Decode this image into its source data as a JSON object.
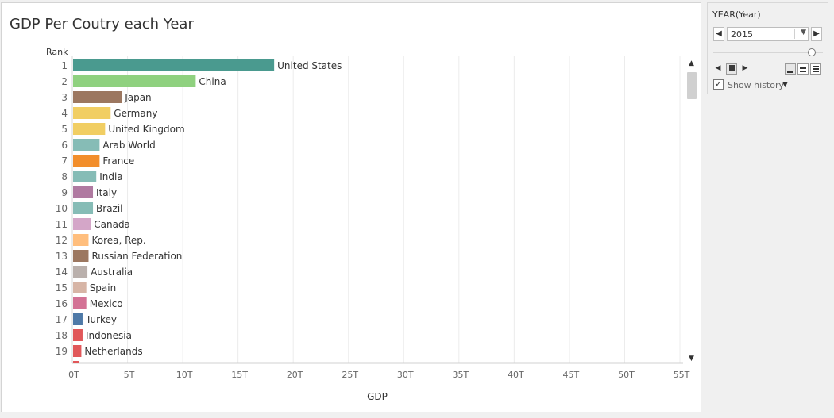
{
  "title": "GDP Per Coutry each Year",
  "chart_data": {
    "type": "bar",
    "orientation": "horizontal",
    "title": "GDP Per Coutry each Year",
    "row_header": "Rank",
    "xlabel": "GDP",
    "xlim": [
      0,
      55
    ],
    "x_unit": "T",
    "x_ticks": [
      "0T",
      "5T",
      "10T",
      "15T",
      "20T",
      "25T",
      "30T",
      "35T",
      "40T",
      "45T",
      "50T",
      "55T"
    ],
    "grid": true,
    "ranks": [
      1,
      2,
      3,
      4,
      5,
      6,
      7,
      8,
      9,
      10,
      11,
      12,
      13,
      14,
      15,
      16,
      17,
      18,
      19
    ],
    "categories": [
      "United States",
      "China",
      "Japan",
      "Germany",
      "United Kingdom",
      "Arab World",
      "France",
      "India",
      "Italy",
      "Brazil",
      "Canada",
      "Korea, Rep.",
      "Russian Federation",
      "Australia",
      "Spain",
      "Mexico",
      "Turkey",
      "Indonesia",
      "Netherlands"
    ],
    "values": [
      18.2,
      11.1,
      4.4,
      3.4,
      2.9,
      2.4,
      2.4,
      2.1,
      1.8,
      1.8,
      1.6,
      1.4,
      1.4,
      1.3,
      1.2,
      1.2,
      0.86,
      0.86,
      0.75
    ],
    "colors": [
      "#4a9a8f",
      "#8fd17f",
      "#9c7760",
      "#f1ce63",
      "#f1ce63",
      "#86bcb6",
      "#f28e2b",
      "#86bcb6",
      "#b07aa1",
      "#86bcb6",
      "#d4a6c8",
      "#ffbe7d",
      "#9c7760",
      "#bab0ac",
      "#d7b5a6",
      "#d37295",
      "#4e79a7",
      "#e15759",
      "#e15759"
    ]
  },
  "scrollbar": {
    "up_icon": "▲",
    "down_icon": "▼"
  },
  "filter": {
    "title": "YEAR(Year)",
    "selected_year": "2015",
    "prev_icon": "◀",
    "next_icon": "▶",
    "dropdown_icon": "▼",
    "slider_position": 0.9,
    "play_back_icon": "◀",
    "play_forward_icon": "▶",
    "show_history_label": "Show history",
    "show_history_checked": true,
    "check_icon": "✓",
    "history_dropdown_icon": "▼"
  }
}
